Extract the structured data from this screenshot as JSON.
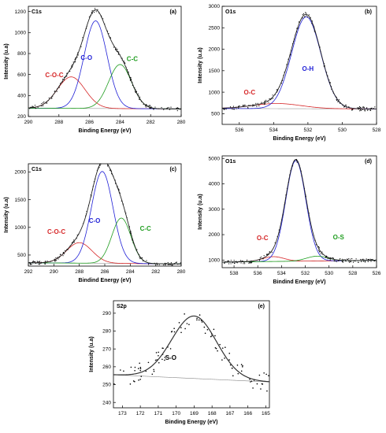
{
  "chart_data": [
    {
      "type": "line",
      "panel_label": "(a)",
      "title": "C1s",
      "xlabel": "Binding Energy (eV)",
      "ylabel": "Intensity (u.a)",
      "xlim": [
        290,
        280
      ],
      "ylim": [
        200,
        1250
      ],
      "xticks": [
        290,
        288,
        286,
        284,
        282,
        280
      ],
      "yticks": [
        200,
        400,
        600,
        800,
        1000,
        1200
      ],
      "baseline": [
        [
          291,
          280
        ],
        [
          279,
          272
        ]
      ],
      "peaks": [
        {
          "label": "C-O-C",
          "center": 287.2,
          "height": 300,
          "width": 0.9,
          "color": "#d62728"
        },
        {
          "label": "C-O",
          "center": 285.6,
          "height": 835,
          "width": 0.75,
          "color": "#1f1fd6"
        },
        {
          "label": "C-C",
          "center": 284.0,
          "height": 420,
          "width": 0.75,
          "color": "#1f9d1f"
        }
      ],
      "annotations": [
        {
          "text": "C-O-C",
          "x": 288.3,
          "y": 575,
          "color": "#d62728"
        },
        {
          "text": "C-O",
          "x": 286.2,
          "y": 740,
          "color": "#1f1fd6"
        },
        {
          "text": "C-C",
          "x": 283.2,
          "y": 730,
          "color": "#1f9d1f"
        }
      ]
    },
    {
      "type": "line",
      "panel_label": "(b)",
      "title": "O1s",
      "xlabel": "Binding Energy (eV)",
      "ylabel": "Intensity (u.a)",
      "xlim": [
        537,
        528
      ],
      "ylim": [
        250,
        3000
      ],
      "xticks": [
        536,
        534,
        532,
        530,
        528
      ],
      "yticks": [
        500,
        1000,
        1500,
        2000,
        2500,
        3000
      ],
      "baseline": [
        [
          537,
          620
        ],
        [
          528,
          610
        ]
      ],
      "peaks": [
        {
          "label": "O-C",
          "center": 533.8,
          "height": 120,
          "width": 1.4,
          "color": "#d62728"
        },
        {
          "label": "O-H",
          "center": 532.1,
          "height": 2140,
          "width": 0.85,
          "color": "#1f1fd6"
        }
      ],
      "annotations": [
        {
          "text": "O-C",
          "x": 535.4,
          "y": 950,
          "color": "#d62728"
        },
        {
          "text": "O-H",
          "x": 532.0,
          "y": 1500,
          "color": "#1f1fd6"
        }
      ]
    },
    {
      "type": "line",
      "panel_label": "(c)",
      "title": "C1s",
      "xlabel": "Bindind Energy (eV)",
      "ylabel": "Intensity (u.a)",
      "xlim": [
        292,
        280
      ],
      "ylim": [
        300,
        2150
      ],
      "xticks": [
        292,
        290,
        288,
        286,
        284,
        282,
        280
      ],
      "yticks": [
        500,
        1000,
        1500,
        2000
      ],
      "baseline": [
        [
          292,
          360
        ],
        [
          280,
          340
        ]
      ],
      "peaks": [
        {
          "label": "C-O-C",
          "center": 288.0,
          "height": 370,
          "width": 1.0,
          "color": "#d62728"
        },
        {
          "label": "C-O",
          "center": 286.2,
          "height": 1660,
          "width": 0.85,
          "color": "#1f1fd6"
        },
        {
          "label": "C-C",
          "center": 284.7,
          "height": 820,
          "width": 0.75,
          "color": "#1f9d1f"
        }
      ],
      "annotations": [
        {
          "text": "C-O-C",
          "x": 289.8,
          "y": 880,
          "color": "#d62728"
        },
        {
          "text": "C-O",
          "x": 286.8,
          "y": 1080,
          "color": "#1f1fd6"
        },
        {
          "text": "C-C",
          "x": 282.8,
          "y": 940,
          "color": "#1f9d1f"
        }
      ]
    },
    {
      "type": "line",
      "panel_label": "(d)",
      "title": "O1s",
      "xlabel": "Bindind Energy (eV)",
      "ylabel": "Intensity (u.a)",
      "xlim": [
        539,
        526
      ],
      "ylim": [
        700,
        5100
      ],
      "xticks": [
        538,
        536,
        534,
        532,
        530,
        528,
        526
      ],
      "yticks": [
        1000,
        2000,
        3000,
        4000,
        5000
      ],
      "baseline": [
        [
          539,
          920
        ],
        [
          526,
          990
        ]
      ],
      "peaks": [
        {
          "label": "O-C",
          "center": 534.7,
          "height": 190,
          "width": 0.9,
          "color": "#d62728"
        },
        {
          "label": "",
          "center": 532.8,
          "height": 3960,
          "width": 0.85,
          "color": "#1f1fd6"
        },
        {
          "label": "O-S",
          "center": 531.0,
          "height": 190,
          "width": 0.9,
          "color": "#1f9d1f"
        }
      ],
      "annotations": [
        {
          "text": "O-C",
          "x": 535.6,
          "y": 1780,
          "color": "#d62728"
        },
        {
          "text": "O-S",
          "x": 529.2,
          "y": 1820,
          "color": "#1f9d1f"
        }
      ]
    },
    {
      "type": "line",
      "panel_label": "(e)",
      "title": "S2p",
      "xlabel": "Binding Energy (eV)",
      "ylabel": "Intensity (u.a)",
      "xlim": [
        173.5,
        164.8
      ],
      "ylim": [
        237,
        297
      ],
      "xticks": [
        173,
        172,
        171,
        170,
        169,
        168,
        167,
        166,
        165
      ],
      "yticks": [
        240,
        250,
        260,
        270,
        280,
        290
      ],
      "baseline": [
        [
          173.5,
          255.5
        ],
        [
          164.8,
          251.5
        ]
      ],
      "peaks": [
        {
          "label": "S-O",
          "center": 169.0,
          "height": 35,
          "width": 1.25,
          "color": "#000000"
        }
      ],
      "annotations": [
        {
          "text": "S-O",
          "x": 170.3,
          "y": 264,
          "color": "#000000"
        }
      ]
    }
  ]
}
